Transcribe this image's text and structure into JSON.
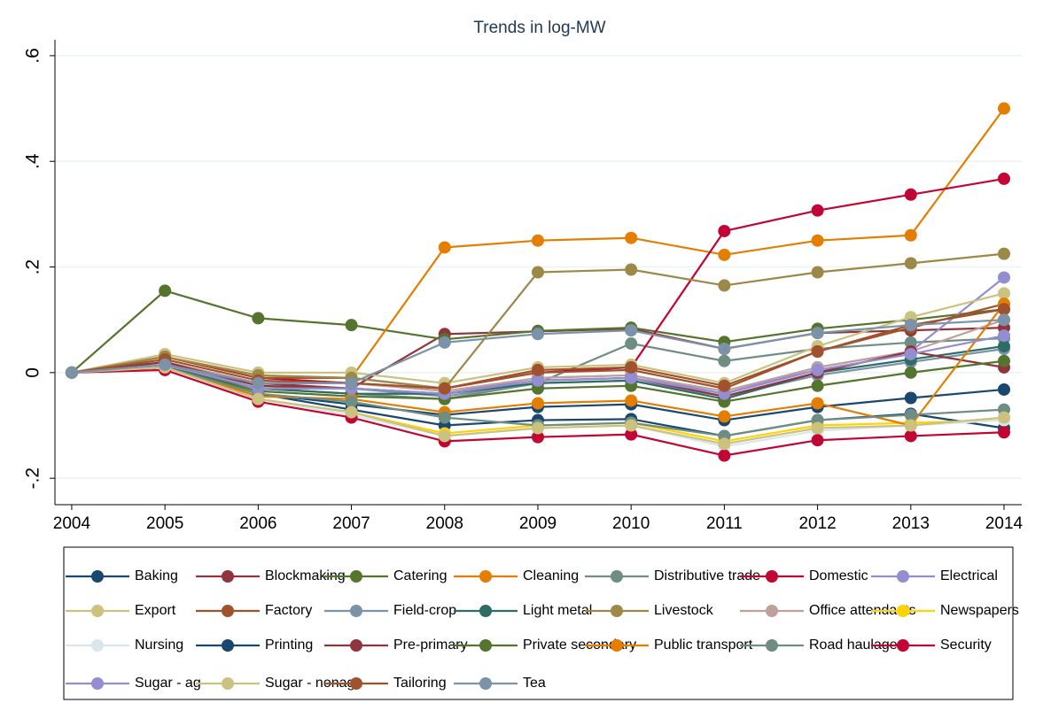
{
  "chart_data": {
    "type": "line",
    "title": "Trends in log-MW",
    "x": [
      2004,
      2005,
      2006,
      2007,
      2008,
      2009,
      2010,
      2011,
      2012,
      2013,
      2014
    ],
    "xlim": [
      2003.82,
      2014.19
    ],
    "xticks": [
      2004,
      2005,
      2006,
      2007,
      2008,
      2009,
      2010,
      2011,
      2012,
      2013,
      2014
    ],
    "ylim": [
      -0.25,
      0.63
    ],
    "yticks": [
      {
        "value": -0.2,
        "label": "-.2"
      },
      0,
      {
        "value": 0.2,
        "label": ".2"
      },
      {
        "value": 0.4,
        "label": ".4"
      },
      {
        "value": 0.6,
        "label": ".6"
      }
    ],
    "grid": true,
    "series": [
      {
        "name": "Baking",
        "color": "#1a476f",
        "values": [
          0,
          0.01,
          -0.04,
          -0.07,
          -0.1,
          -0.09,
          -0.088,
          -0.12,
          -0.09,
          -0.078,
          -0.105
        ]
      },
      {
        "name": "Blockmaking",
        "color": "#90353b",
        "values": [
          0,
          0.02,
          -0.02,
          -0.03,
          0.073,
          0.078,
          0.083,
          0.045,
          0.075,
          0.08,
          0.085
        ]
      },
      {
        "name": "Catering",
        "color": "#55752f",
        "values": [
          0,
          0.155,
          0.103,
          0.09,
          0.063,
          0.079,
          0.085,
          0.058,
          0.083,
          0.1,
          0.12
        ]
      },
      {
        "name": "Cleaning",
        "color": "#e37e00",
        "values": [
          0,
          0.03,
          -0.01,
          -0.01,
          0.237,
          0.25,
          0.255,
          0.223,
          0.25,
          0.26,
          0.5
        ]
      },
      {
        "name": "Distributive trade",
        "color": "#6e8e84",
        "values": [
          0,
          0.01,
          -0.03,
          -0.04,
          -0.05,
          -0.02,
          0.055,
          0.022,
          0.045,
          0.057,
          0.065
        ]
      },
      {
        "name": "Domestic",
        "color": "#c10534",
        "values": [
          0,
          0.03,
          -0.01,
          -0.02,
          -0.03,
          0.0,
          0.01,
          0.268,
          0.307,
          0.337,
          0.367
        ]
      },
      {
        "name": "Electrical",
        "color": "#938dd2",
        "values": [
          0,
          0.02,
          -0.03,
          -0.03,
          -0.04,
          -0.01,
          -0.005,
          -0.04,
          0.01,
          0.04,
          0.18
        ]
      },
      {
        "name": "Export",
        "color": "#cac27e",
        "values": [
          0,
          0.035,
          0.0,
          0.0,
          -0.02,
          0.01,
          0.015,
          -0.02,
          0.05,
          0.105,
          0.15
        ]
      },
      {
        "name": "Factory",
        "color": "#a0522d",
        "values": [
          0,
          0.03,
          -0.01,
          -0.01,
          -0.03,
          0.0,
          0.005,
          -0.03,
          0.04,
          0.085,
          0.13
        ]
      },
      {
        "name": "Field-crop",
        "color": "#7b92a8",
        "values": [
          0,
          0.015,
          -0.03,
          -0.03,
          -0.045,
          -0.02,
          -0.015,
          -0.045,
          -0.005,
          0.02,
          0.045
        ]
      },
      {
        "name": "Light metal",
        "color": "#2d6d66",
        "values": [
          0,
          0.01,
          -0.03,
          -0.04,
          -0.04,
          -0.02,
          -0.015,
          -0.05,
          0.0,
          0.025,
          0.05
        ]
      },
      {
        "name": "Livestock",
        "color": "#9c8847",
        "values": [
          0,
          0.03,
          -0.005,
          -0.01,
          -0.03,
          0.19,
          0.195,
          0.165,
          0.19,
          0.207,
          0.225
        ]
      },
      {
        "name": "Office attendants",
        "color": "#bfa19c",
        "values": [
          0,
          0.02,
          -0.02,
          -0.02,
          -0.035,
          -0.01,
          -0.005,
          -0.035,
          0.01,
          0.04,
          0.1
        ]
      },
      {
        "name": "Newspapers",
        "color": "#ffd200",
        "values": [
          0,
          0.01,
          -0.05,
          -0.075,
          -0.115,
          -0.1,
          -0.095,
          -0.13,
          -0.1,
          -0.095,
          -0.09
        ]
      },
      {
        "name": "Nursing",
        "color": "#d9e6eb",
        "values": [
          0,
          0.01,
          -0.05,
          -0.08,
          -0.12,
          -0.105,
          -0.1,
          -0.14,
          -0.11,
          -0.1,
          -0.09
        ]
      },
      {
        "name": "Printing",
        "color": "#1a476f",
        "values": [
          0,
          0.01,
          -0.04,
          -0.06,
          -0.08,
          -0.065,
          -0.06,
          -0.09,
          -0.065,
          -0.048,
          -0.032
        ]
      },
      {
        "name": "Pre-primary",
        "color": "#90353b",
        "values": [
          0,
          0.02,
          -0.025,
          -0.03,
          -0.04,
          -0.015,
          -0.01,
          -0.045,
          0.0,
          0.04,
          0.01
        ]
      },
      {
        "name": "Private secondary",
        "color": "#55752f",
        "values": [
          0,
          0.01,
          -0.035,
          -0.045,
          -0.05,
          -0.03,
          -0.025,
          -0.055,
          -0.025,
          0.0,
          0.022
        ]
      },
      {
        "name": "Public transport",
        "color": "#e37e00",
        "values": [
          0,
          0.01,
          -0.045,
          -0.05,
          -0.075,
          -0.058,
          -0.053,
          -0.083,
          -0.058,
          -0.1,
          0.13
        ]
      },
      {
        "name": "Road haulage",
        "color": "#6e8e84",
        "values": [
          0,
          0.01,
          -0.04,
          -0.055,
          -0.085,
          -0.1,
          -0.095,
          -0.12,
          -0.09,
          -0.08,
          -0.07
        ]
      },
      {
        "name": "Security",
        "color": "#c10534",
        "values": [
          0,
          0.005,
          -0.055,
          -0.085,
          -0.13,
          -0.122,
          -0.117,
          -0.157,
          -0.128,
          -0.12,
          -0.113
        ]
      },
      {
        "name": "Sugar - ag",
        "color": "#938dd2",
        "values": [
          0,
          0.015,
          -0.03,
          -0.03,
          -0.04,
          -0.015,
          -0.01,
          -0.04,
          0.005,
          0.035,
          0.07
        ]
      },
      {
        "name": "Sugar - nonag",
        "color": "#cac27e",
        "values": [
          0,
          0.01,
          -0.05,
          -0.075,
          -0.12,
          -0.105,
          -0.1,
          -0.135,
          -0.105,
          -0.1,
          -0.085
        ]
      },
      {
        "name": "Tailoring",
        "color": "#a0522d",
        "values": [
          0,
          0.025,
          -0.015,
          -0.02,
          -0.03,
          0.005,
          0.01,
          -0.025,
          0.04,
          0.09,
          0.12
        ]
      },
      {
        "name": "Tea",
        "color": "#7b92a8",
        "values": [
          0,
          0.015,
          -0.02,
          -0.02,
          0.057,
          0.073,
          0.08,
          0.045,
          0.075,
          0.09,
          0.1
        ]
      }
    ]
  }
}
